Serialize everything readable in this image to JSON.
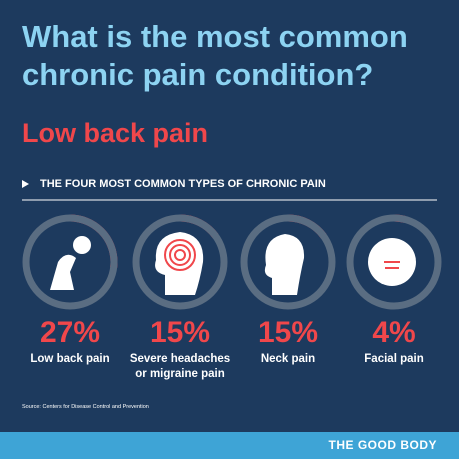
{
  "chart_data": {
    "type": "ring",
    "title": "What is the most common chronic pain condition?",
    "subtitle": "Low back pain",
    "section_title": "THE FOUR MOST COMMON TYPES OF CHRONIC PAIN",
    "categories": [
      "Low back pain",
      "Severe headaches or migraine pain",
      "Neck pain",
      "Facial pain"
    ],
    "values": [
      27,
      15,
      15,
      4
    ],
    "value_labels": [
      "27%",
      "15%",
      "15%",
      "4%"
    ],
    "ylim": [
      0,
      100
    ],
    "color": "#f0474b",
    "track_color": "#5a6d82",
    "source": "Source: Centers for Disease Control and Prevention",
    "brand": "THE GOOD BODY"
  }
}
